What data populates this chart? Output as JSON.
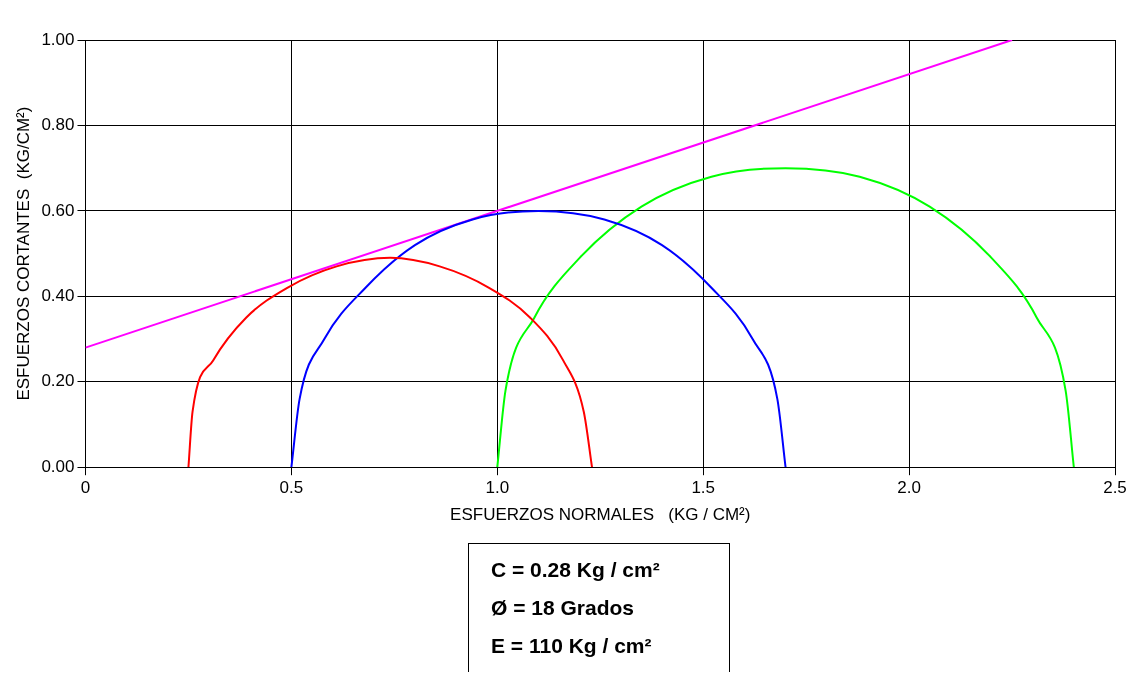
{
  "chart_data": {
    "type": "line",
    "xlabel": "ESFUERZOS NORMALES   (KG / CM²)",
    "ylabel": "ESFUERZOS CORTANTES  (KG/CM²)",
    "xlim": [
      0,
      2.5
    ],
    "xticks": [
      0,
      0.5,
      {
        "value": 1,
        "label": "1.0"
      },
      1.5,
      {
        "value": 2,
        "label": "2.0"
      },
      2.5
    ],
    "ylim": [
      0,
      1
    ],
    "yticks": [
      {
        "value": 0,
        "label": "0.00"
      },
      {
        "value": 0.2,
        "label": "0.20"
      },
      {
        "value": 0.4,
        "label": "0.40"
      },
      {
        "value": 0.6,
        "label": "0.60"
      },
      {
        "value": 0.8,
        "label": "0.80"
      },
      {
        "value": 1,
        "label": "1.00"
      }
    ],
    "grid": true,
    "legend": false,
    "marker": "none",
    "line_style": "solid",
    "series": [
      {
        "color": "#ff0000",
        "x": [
          0.25,
          0.26,
          0.31,
          0.39,
          0.49,
          0.61,
          0.74,
          0.86,
          0.98,
          1.08,
          1.16,
          1.21,
          1.23
        ],
        "values": [
          0,
          0.13,
          0.25,
          0.35,
          0.42,
          0.47,
          0.49,
          0.47,
          0.42,
          0.35,
          0.25,
          0.13,
          0
        ]
      },
      {
        "color": "#0000ff",
        "x": [
          0.5,
          0.52,
          0.58,
          0.68,
          0.8,
          0.94,
          1.1,
          1.26,
          1.4,
          1.52,
          1.62,
          1.68,
          1.7
        ],
        "values": [
          0,
          0.16,
          0.3,
          0.42,
          0.52,
          0.58,
          0.6,
          0.58,
          0.52,
          0.42,
          0.3,
          0.16,
          0
        ]
      },
      {
        "color": "#00ff00",
        "x": [
          1.0,
          1.02,
          1.09,
          1.2,
          1.35,
          1.52,
          1.7,
          1.88,
          2.05,
          2.2,
          2.31,
          2.38,
          2.4
        ],
        "values": [
          0,
          0.18,
          0.35,
          0.49,
          0.61,
          0.68,
          0.7,
          0.68,
          0.61,
          0.49,
          0.35,
          0.18,
          0
        ]
      },
      {
        "color": "#ff00ff",
        "x": [
          0,
          2.25
        ],
        "values": [
          0.28,
          1.0
        ]
      }
    ],
    "annotations": [
      "C = 0.28 Kg / cm²",
      "Ø = 18 Grados",
      "E = 110 Kg / cm²"
    ]
  }
}
